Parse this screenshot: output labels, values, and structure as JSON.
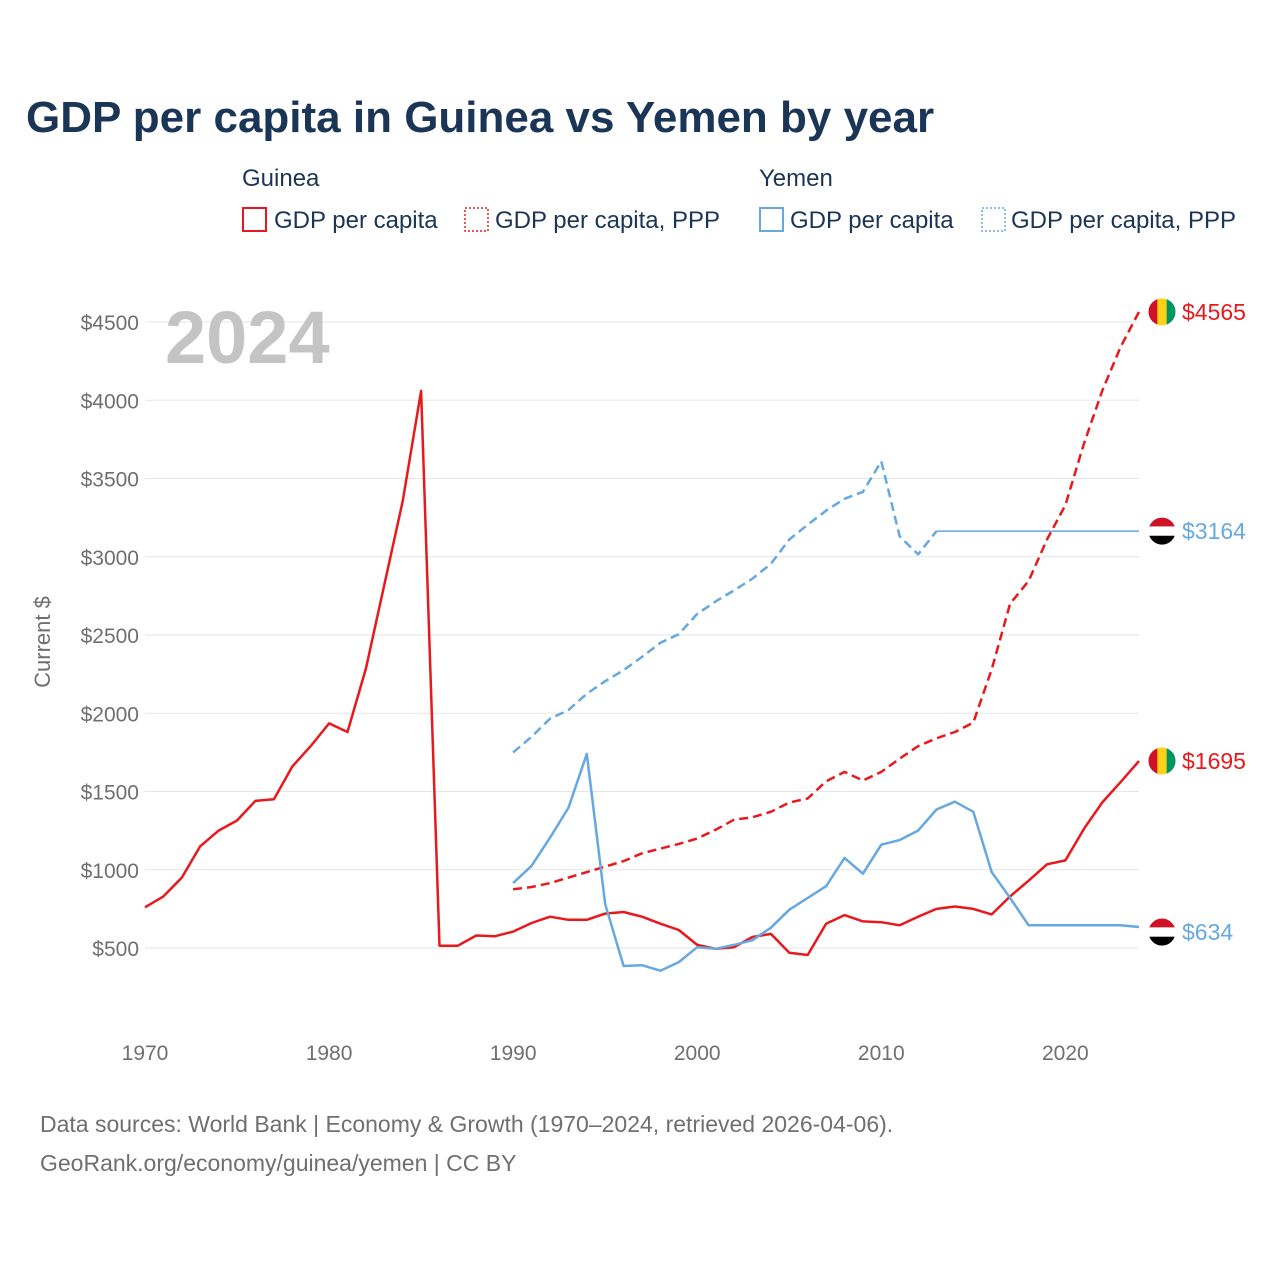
{
  "chart_data": {
    "type": "line",
    "title": "GDP per capita in Guinea vs Yemen by year",
    "year_overlay": "2024",
    "ylabel": "Current $",
    "xlabel": "",
    "xlim": [
      1970,
      2024
    ],
    "ylim": [
      0,
      4800
    ],
    "x_ticks": [
      1970,
      1980,
      1990,
      2000,
      2010,
      2020
    ],
    "x_tick_labels": [
      "1970",
      "1980",
      "1990",
      "2000",
      "2010",
      "2020"
    ],
    "y_ticks": [
      500,
      1000,
      1500,
      2000,
      2500,
      3000,
      3500,
      4000,
      4500
    ],
    "y_tick_labels": [
      "$500",
      "$1000",
      "$1500",
      "$2000",
      "$2500",
      "$3000",
      "$3500",
      "$4000",
      "$4500"
    ],
    "legend": [
      {
        "group": "Guinea",
        "entries": [
          "GDP per capita",
          "GDP per capita, PPP"
        ]
      },
      {
        "group": "Yemen",
        "entries": [
          "GDP per capita",
          "GDP per capita, PPP"
        ]
      }
    ],
    "colors": {
      "guinea": "#e8191c",
      "yemen": "#66a8e0"
    },
    "series": [
      {
        "id": "guinea-gdp",
        "name": "Guinea GDP per capita",
        "country": "Guinea",
        "dashed": false,
        "end_label": "$1695",
        "x": [
          1970,
          1971,
          1972,
          1973,
          1974,
          1975,
          1976,
          1977,
          1978,
          1979,
          1980,
          1981,
          1982,
          1983,
          1984,
          1985,
          1986,
          1987,
          1988,
          1989,
          1990,
          1991,
          1992,
          1993,
          1994,
          1995,
          1996,
          1997,
          1998,
          1999,
          2000,
          2001,
          2002,
          2003,
          2004,
          2005,
          2006,
          2007,
          2008,
          2009,
          2010,
          2011,
          2012,
          2013,
          2014,
          2015,
          2016,
          2017,
          2018,
          2019,
          2020,
          2021,
          2022,
          2023,
          2024
        ],
        "values": [
          760,
          830,
          950,
          1150,
          1250,
          1315,
          1440,
          1450,
          1660,
          1790,
          1935,
          1880,
          2285,
          2820,
          3355,
          4060,
          515,
          515,
          580,
          575,
          605,
          660,
          700,
          680,
          680,
          720,
          730,
          700,
          655,
          615,
          520,
          495,
          505,
          570,
          590,
          470,
          455,
          655,
          710,
          670,
          665,
          645,
          700,
          750,
          765,
          750,
          715,
          830,
          930,
          1035,
          1060,
          1260,
          1430,
          1560,
          1695
        ]
      },
      {
        "id": "guinea-ppp",
        "name": "Guinea GDP per capita, PPP",
        "country": "Guinea",
        "dashed": true,
        "end_label": "$4565",
        "x": [
          1990,
          1991,
          1992,
          1993,
          1994,
          1995,
          1996,
          1997,
          1998,
          1999,
          2000,
          2001,
          2002,
          2003,
          2004,
          2005,
          2006,
          2007,
          2008,
          2009,
          2010,
          2011,
          2012,
          2013,
          2014,
          2015,
          2016,
          2017,
          2018,
          2019,
          2020,
          2021,
          2022,
          2023,
          2024
        ],
        "values": [
          875,
          890,
          915,
          950,
          985,
          1020,
          1055,
          1105,
          1135,
          1165,
          1200,
          1255,
          1320,
          1335,
          1370,
          1430,
          1455,
          1565,
          1625,
          1570,
          1625,
          1710,
          1790,
          1840,
          1880,
          1940,
          2280,
          2700,
          2845,
          3110,
          3330,
          3720,
          4060,
          4340,
          4565
        ]
      },
      {
        "id": "yemen-gdp",
        "name": "Yemen GDP per capita",
        "country": "Yemen",
        "dashed": false,
        "end_label": "$634",
        "x": [
          1990,
          1991,
          1992,
          1993,
          1994,
          1995,
          1996,
          1997,
          1998,
          1999,
          2000,
          2001,
          2002,
          2003,
          2004,
          2005,
          2006,
          2007,
          2008,
          2009,
          2010,
          2011,
          2012,
          2013,
          2014,
          2015,
          2016,
          2017,
          2018,
          2019,
          2020,
          2021,
          2022,
          2023,
          2024
        ],
        "values": [
          915,
          1025,
          1205,
          1395,
          1740,
          780,
          385,
          390,
          355,
          410,
          505,
          495,
          520,
          550,
          630,
          745,
          820,
          895,
          1075,
          975,
          1160,
          1190,
          1250,
          1385,
          1435,
          1370,
          985,
          820,
          645,
          645,
          645,
          645,
          645,
          645,
          634
        ]
      },
      {
        "id": "yemen-ppp",
        "name": "Yemen GDP per capita, PPP",
        "country": "Yemen",
        "dashed": true,
        "end_label": "$3164",
        "x": [
          1990,
          1991,
          1992,
          1993,
          1994,
          1995,
          1996,
          1997,
          1998,
          1999,
          2000,
          2001,
          2002,
          2003,
          2004,
          2005,
          2006,
          2007,
          2008,
          2009,
          2010,
          2011,
          2012,
          2013,
          2014,
          2015,
          2016,
          2017,
          2018,
          2019,
          2020,
          2021,
          2022,
          2023,
          2024
        ],
        "values": [
          1750,
          1850,
          1965,
          2020,
          2125,
          2205,
          2275,
          2360,
          2450,
          2505,
          2635,
          2715,
          2785,
          2860,
          2955,
          3110,
          3205,
          3295,
          3370,
          3415,
          3610,
          3130,
          3015,
          3164,
          3164,
          3164,
          3164,
          3164,
          3164,
          3164,
          3164,
          3164,
          3164,
          3164,
          3164
        ],
        "solid_from_x": 2013
      }
    ]
  },
  "source": {
    "line1": "Data sources: World Bank | Economy & Growth (1970–2024, retrieved 2026-04-06).",
    "line2": "GeoRank.org/economy/guinea/yemen | CC BY"
  }
}
